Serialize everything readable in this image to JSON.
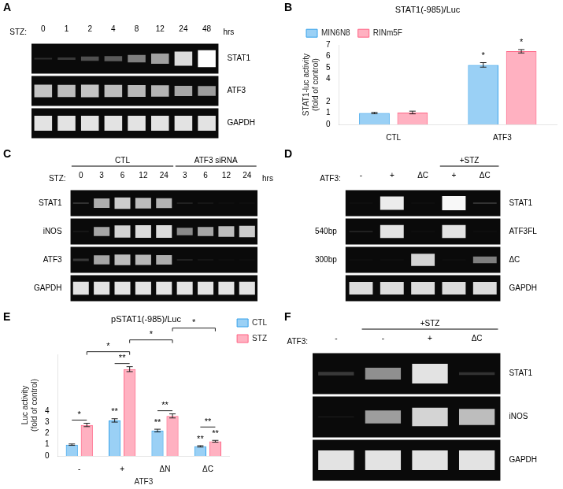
{
  "chart_data": [
    {
      "type": "gel",
      "label": "A",
      "xlabel": "STZ:",
      "xunit": "hrs",
      "column_groups": [
        {
          "categories": [
            "0",
            "1",
            "2",
            "4",
            "8",
            "12",
            "24",
            "48"
          ]
        }
      ],
      "rows_right": [
        "STAT1",
        "ATF3",
        "GAPDH"
      ],
      "cells": [
        [
          0.1,
          0.15,
          0.25,
          0.3,
          0.45,
          0.6,
          0.85,
          1.0
        ],
        [
          0.75,
          0.72,
          0.75,
          0.72,
          0.7,
          0.68,
          0.62,
          0.58
        ],
        [
          0.88,
          0.88,
          0.88,
          0.88,
          0.88,
          0.88,
          0.88,
          0.88
        ]
      ]
    },
    {
      "type": "bar",
      "label": "B",
      "title": "STAT1(-985)/Luc",
      "ylabel": "STAT1-luc activity\n(fold of control)",
      "categories": [
        "CTL",
        "ATF3"
      ],
      "series": [
        {
          "name": "MIN6N8",
          "values": [
            1.0,
            5.25
          ],
          "errors": [
            0.06,
            0.2
          ],
          "significance": [
            null,
            "*"
          ]
        },
        {
          "name": "RINm5F",
          "values": [
            1.05,
            6.45
          ],
          "errors": [
            0.12,
            0.15
          ],
          "significance": [
            null,
            "*"
          ]
        }
      ],
      "ylim": [
        0,
        7
      ],
      "yticks": [
        0,
        1,
        2,
        4,
        5,
        6,
        7
      ],
      "grid": false,
      "legend": "upper left"
    },
    {
      "type": "gel",
      "label": "C",
      "xlabel": "STZ:",
      "xunit": "hrs",
      "column_groups": [
        {
          "name": "CTL",
          "categories": [
            "0",
            "3",
            "6",
            "12",
            "24"
          ]
        },
        {
          "name": "ATF3 siRNA",
          "categories": [
            "3",
            "6",
            "12",
            "24"
          ]
        }
      ],
      "rows_left": [
        "STAT1",
        "iNOS",
        "ATF3",
        "GAPDH"
      ],
      "cells": [
        [
          0.12,
          0.65,
          0.78,
          0.72,
          0.68,
          0.08,
          0.06,
          0.04,
          0.04
        ],
        [
          0.06,
          0.62,
          0.82,
          0.85,
          0.85,
          0.5,
          0.62,
          0.72,
          0.78
        ],
        [
          0.15,
          0.62,
          0.72,
          0.7,
          0.65,
          0.08,
          0.05,
          0.04,
          0.04
        ],
        [
          0.88,
          0.88,
          0.88,
          0.88,
          0.88,
          0.88,
          0.88,
          0.88,
          0.88
        ]
      ]
    },
    {
      "type": "gel",
      "label": "D",
      "xlabel": "ATF3:",
      "column_groups": [
        {
          "categories": [
            "-",
            "+",
            "ΔC"
          ]
        },
        {
          "name": "+STZ",
          "categories": [
            "+",
            "ΔC"
          ]
        }
      ],
      "rows_right": [
        "STAT1",
        "ATF3FL",
        "ΔC",
        "GAPDH"
      ],
      "rows_left": [
        null,
        "540bp",
        "300bp",
        null
      ],
      "cells": [
        [
          0.04,
          0.92,
          0.04,
          0.97,
          0.12
        ],
        [
          0.08,
          0.88,
          0.04,
          0.88,
          0.04
        ],
        [
          0.04,
          0.04,
          0.82,
          0.04,
          0.45
        ],
        [
          0.85,
          0.85,
          0.85,
          0.85,
          0.85
        ]
      ]
    },
    {
      "type": "bar",
      "label": "E",
      "title": "pSTAT1(-985)/Luc",
      "xlabel": "ATF3",
      "ylabel": "Luc activity\n(fold of control)",
      "categories": [
        "-",
        "+",
        "ΔN",
        "ΔC"
      ],
      "series": [
        {
          "name": "CTL",
          "values": [
            1.0,
            3.15,
            2.25,
            0.85
          ],
          "errors": [
            0.06,
            0.15,
            0.12,
            0.06
          ],
          "significance": [
            null,
            "**",
            "**",
            "**"
          ]
        },
        {
          "name": "STZ",
          "values": [
            2.75,
            7.7,
            3.55,
            1.3
          ],
          "errors": [
            0.15,
            0.22,
            0.18,
            0.08
          ],
          "significance": [
            null,
            null,
            null,
            "**"
          ]
        }
      ],
      "pair_significance": [
        "*",
        "**",
        "**",
        "**"
      ],
      "brackets": [
        {
          "series": "STZ",
          "from": "-",
          "to": "+",
          "text": "*"
        },
        {
          "series": "STZ",
          "from": "+",
          "to": "ΔN",
          "text": "*"
        },
        {
          "series": "STZ",
          "from": "ΔN",
          "to": "ΔC",
          "text": "*"
        }
      ],
      "ylim": [
        0,
        9
      ],
      "yticks": [
        0,
        1,
        2,
        3,
        4
      ],
      "grid": false,
      "legend": "upper right"
    },
    {
      "type": "gel",
      "label": "F",
      "xlabel": "ATF3:",
      "column_groups": [
        {
          "categories": [
            "-"
          ]
        },
        {
          "name": "+STZ",
          "categories": [
            "-",
            "+",
            "ΔC"
          ]
        }
      ],
      "rows_right": [
        "STAT1",
        "iNOS",
        "GAPDH"
      ],
      "cells": [
        [
          0.15,
          0.52,
          0.88,
          0.12
        ],
        [
          0.04,
          0.58,
          0.82,
          0.72
        ],
        [
          0.88,
          0.88,
          0.88,
          0.88
        ]
      ]
    }
  ]
}
